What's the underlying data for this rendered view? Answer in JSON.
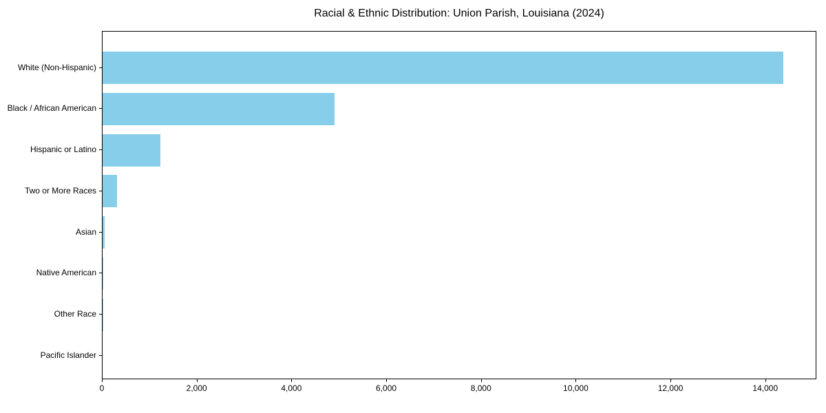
{
  "chart_data": {
    "type": "bar",
    "orientation": "horizontal",
    "title": "Racial & Ethnic Distribution: Union Parish, Louisiana (2024)",
    "categories": [
      "White (Non-Hispanic)",
      "Black / African American",
      "Hispanic or Latino",
      "Two or More Races",
      "Asian",
      "Native American",
      "Other Race",
      "Pacific Islander"
    ],
    "values": [
      14360,
      4890,
      1220,
      300,
      50,
      10,
      5,
      0
    ],
    "xlabel": "",
    "ylabel": "",
    "xlim": [
      0,
      15078
    ],
    "x_ticks": [
      0,
      2000,
      4000,
      6000,
      8000,
      10000,
      12000,
      14000
    ],
    "x_tick_labels": [
      "0",
      "2,000",
      "4,000",
      "6,000",
      "8,000",
      "10,000",
      "12,000",
      "14,000"
    ],
    "bar_color": "#87CEEB",
    "axis_color": "#000000",
    "text_color": "#000000",
    "background_color": "#ffffff",
    "grid": false,
    "legend": null
  }
}
